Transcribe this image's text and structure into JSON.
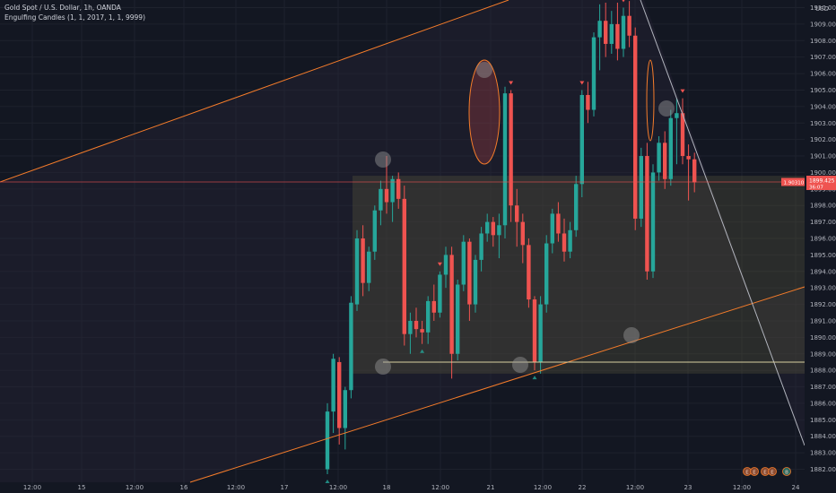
{
  "header": {
    "symbol_title": "Gold Spot / U.S. Dollar, 1h, OANDA",
    "indicator": "Engulfing Candles (1, 1, 2017, 1, 1, 9999)"
  },
  "colors": {
    "background": "#131722",
    "up": "#26a69a",
    "down": "#ef5350",
    "trendline": "#f57c2a",
    "grid": "#1e222d",
    "zone": "#5e5a3e",
    "price_line": "#ef5350"
  },
  "price_scale": {
    "currency": "USD",
    "last_price_label": "1899.425",
    "last_price_sub": "36:07",
    "left_badge": "1.90310"
  },
  "chart_data": {
    "type": "candlestick",
    "ylim": [
      1881.6,
      1910.5
    ],
    "y_ticks": [
      1910.0,
      1909.0,
      1908.0,
      1907.0,
      1906.0,
      1905.0,
      1904.0,
      1903.0,
      1902.0,
      1901.0,
      1900.0,
      1899.0,
      1898.0,
      1897.0,
      1896.0,
      1895.0,
      1894.0,
      1893.0,
      1892.0,
      1891.0,
      1890.0,
      1889.0,
      1888.0,
      1887.0,
      1886.0,
      1885.0,
      1884.0,
      1883.0,
      1882.0
    ],
    "x_ticks": [
      "12:00",
      "15",
      "12:00",
      "16",
      "12:00",
      "17",
      "12:00",
      "18",
      "12:00",
      "21",
      "12:00",
      "22",
      "12:00",
      "23",
      "12:00",
      "24"
    ],
    "last_price": 1899.425,
    "demand_zone": [
      1887.8,
      1899.8
    ],
    "support_line": 1888.5,
    "ohlc": [
      [
        1882.0,
        1886.0,
        1881.7,
        1885.5
      ],
      [
        1885.5,
        1889.0,
        1884.2,
        1888.7
      ],
      [
        1888.5,
        1888.8,
        1883.5,
        1884.5
      ],
      [
        1884.5,
        1887.0,
        1883.2,
        1886.8
      ],
      [
        1886.8,
        1892.5,
        1886.3,
        1892.1
      ],
      [
        1892.0,
        1896.5,
        1891.6,
        1896.0
      ],
      [
        1896.0,
        1896.8,
        1892.5,
        1893.3
      ],
      [
        1893.3,
        1895.5,
        1892.8,
        1895.2
      ],
      [
        1895.2,
        1898.0,
        1894.7,
        1897.7
      ],
      [
        1897.7,
        1899.5,
        1896.8,
        1899.0
      ],
      [
        1899.0,
        1901.0,
        1897.5,
        1898.2
      ],
      [
        1898.2,
        1899.8,
        1897.0,
        1899.6
      ],
      [
        1899.6,
        1900.0,
        1897.8,
        1898.4
      ],
      [
        1898.4,
        1899.2,
        1889.5,
        1890.2
      ],
      [
        1890.2,
        1891.5,
        1889.0,
        1891.0
      ],
      [
        1891.0,
        1891.8,
        1890.0,
        1890.5
      ],
      [
        1890.5,
        1891.0,
        1889.6,
        1890.3
      ],
      [
        1890.3,
        1892.5,
        1889.6,
        1892.2
      ],
      [
        1892.2,
        1893.2,
        1891.0,
        1891.5
      ],
      [
        1891.5,
        1894.0,
        1891.2,
        1893.8
      ],
      [
        1893.8,
        1895.5,
        1893.0,
        1895.0
      ],
      [
        1895.0,
        1895.5,
        1887.5,
        1889.0
      ],
      [
        1889.0,
        1893.5,
        1888.6,
        1893.2
      ],
      [
        1893.2,
        1896.2,
        1892.8,
        1895.8
      ],
      [
        1895.8,
        1896.0,
        1891.0,
        1892.0
      ],
      [
        1892.0,
        1895.0,
        1891.5,
        1894.7
      ],
      [
        1894.7,
        1896.7,
        1894.0,
        1896.3
      ],
      [
        1896.3,
        1897.5,
        1895.8,
        1897.0
      ],
      [
        1897.0,
        1897.3,
        1895.5,
        1896.2
      ],
      [
        1896.2,
        1897.5,
        1894.8,
        1896.8
      ],
      [
        1896.8,
        1905.2,
        1896.0,
        1904.8
      ],
      [
        1904.8,
        1905.0,
        1897.0,
        1898.0
      ],
      [
        1898.0,
        1899.0,
        1895.5,
        1897.0
      ],
      [
        1897.0,
        1897.5,
        1894.5,
        1895.6
      ],
      [
        1895.6,
        1896.0,
        1891.8,
        1892.3
      ],
      [
        1892.3,
        1892.5,
        1888.0,
        1888.5
      ],
      [
        1888.5,
        1892.5,
        1887.8,
        1892.0
      ],
      [
        1892.0,
        1896.2,
        1891.5,
        1895.7
      ],
      [
        1895.7,
        1897.8,
        1895.1,
        1897.5
      ],
      [
        1897.5,
        1898.2,
        1895.8,
        1896.3
      ],
      [
        1896.3,
        1897.2,
        1894.6,
        1895.2
      ],
      [
        1895.2,
        1897.0,
        1894.8,
        1896.5
      ],
      [
        1896.5,
        1899.8,
        1896.1,
        1899.3
      ],
      [
        1899.3,
        1905.0,
        1898.5,
        1904.7
      ],
      [
        1904.7,
        1905.5,
        1903.0,
        1903.8
      ],
      [
        1903.8,
        1908.5,
        1903.4,
        1908.2
      ],
      [
        1908.2,
        1910.2,
        1906.2,
        1909.2
      ],
      [
        1909.2,
        1910.3,
        1907.0,
        1907.8
      ],
      [
        1907.8,
        1909.8,
        1907.2,
        1909.0
      ],
      [
        1909.0,
        1910.3,
        1906.8,
        1907.5
      ],
      [
        1907.5,
        1910.0,
        1907.0,
        1909.5
      ],
      [
        1909.5,
        1910.4,
        1907.6,
        1908.3
      ],
      [
        1908.3,
        1908.8,
        1896.5,
        1897.2
      ],
      [
        1897.2,
        1901.5,
        1896.7,
        1901.0
      ],
      [
        1901.0,
        1901.8,
        1893.5,
        1894.0
      ],
      [
        1894.0,
        1900.5,
        1893.6,
        1900.0
      ],
      [
        1900.0,
        1902.2,
        1899.5,
        1901.8
      ],
      [
        1901.8,
        1902.5,
        1899.0,
        1899.6
      ],
      [
        1899.6,
        1903.8,
        1899.2,
        1903.3
      ],
      [
        1903.3,
        1904.5,
        1900.5,
        1903.6
      ],
      [
        1903.6,
        1904.5,
        1900.5,
        1901.0
      ],
      [
        1901.0,
        1901.7,
        1898.3,
        1900.8
      ],
      [
        1900.8,
        1901.2,
        1898.8,
        1899.4
      ]
    ],
    "marks": [
      {
        "type": "up",
        "candle": 0
      },
      {
        "type": "up",
        "candle": 16
      },
      {
        "type": "down",
        "candle": 19
      },
      {
        "type": "down",
        "candle": 31
      },
      {
        "type": "up",
        "candle": 35
      },
      {
        "type": "down",
        "candle": 43
      },
      {
        "type": "down",
        "candle": 50
      },
      {
        "type": "down",
        "candle": 60
      }
    ]
  },
  "footer": {
    "badge_1": "E",
    "badge_2": "E",
    "badge_3": "E",
    "badge_4": "E",
    "badge_5": "B"
  }
}
